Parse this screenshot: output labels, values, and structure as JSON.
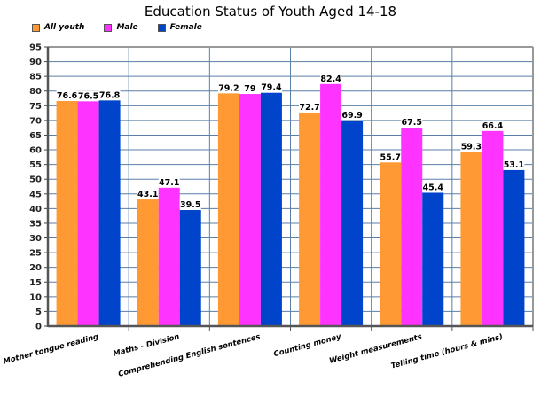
{
  "chart_data": {
    "type": "bar",
    "title": "Education Status of Youth Aged 14-18",
    "xlabel": "",
    "ylabel": "",
    "ylim": [
      0,
      95
    ],
    "ytick_step": 5,
    "grid": true,
    "legend_position": "top-left",
    "categories": [
      "Mother tongue reading",
      "Maths - Division",
      "Comprehending English sentences",
      "Counting money",
      "Weight measurements",
      "Telling time (hours & mins)"
    ],
    "series": [
      {
        "name": "All youth",
        "color": "#ff9933",
        "values": [
          76.6,
          43.1,
          79.2,
          72.7,
          55.7,
          59.3
        ]
      },
      {
        "name": "Male",
        "color": "#ff33ff",
        "values": [
          76.5,
          47.1,
          79,
          82.4,
          67.5,
          66.4
        ]
      },
      {
        "name": "Female",
        "color": "#0044cc",
        "values": [
          76.8,
          39.5,
          79.4,
          69.9,
          45.4,
          53.1
        ]
      }
    ]
  }
}
